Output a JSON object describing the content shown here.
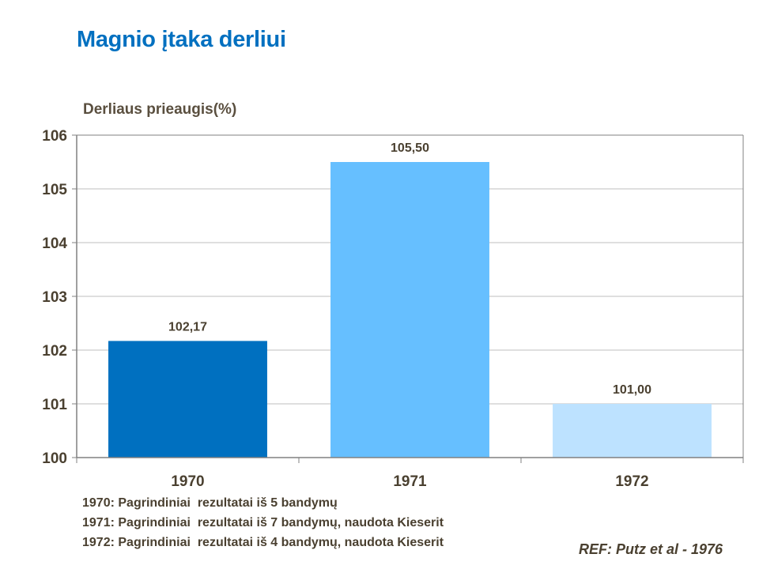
{
  "title": "Magnio įtaka derliui",
  "colors": {
    "title": "#0070C0",
    "text": "#4a4030",
    "grid": "#bfbfbf",
    "axis": "#808080",
    "bars": [
      "#0070C0",
      "#66BFFF",
      "#BDE2FF"
    ]
  },
  "chart_data": {
    "type": "bar",
    "title": "",
    "xlabel": "",
    "ylabel": "Derliaus prieaugis(%)",
    "categories": [
      "1970",
      "1971",
      "1972"
    ],
    "values": [
      102.17,
      105.5,
      101.0
    ],
    "data_labels": [
      "102,17",
      "105,50",
      "101,00"
    ],
    "ylim": [
      100,
      106
    ],
    "yticks": [
      100,
      101,
      102,
      103,
      104,
      105,
      106
    ],
    "grid": true,
    "legend": "none"
  },
  "notes": [
    "1970: Pagrindiniai  rezultatai iš 5 bandymų",
    "1971: Pagrindiniai  rezultatai iš 7 bandymų, naudota Kieserit",
    "1972: Pagrindiniai  rezultatai iš 4 bandymų, naudota Kieserit"
  ],
  "reference": "REF: Putz et al - 1976"
}
